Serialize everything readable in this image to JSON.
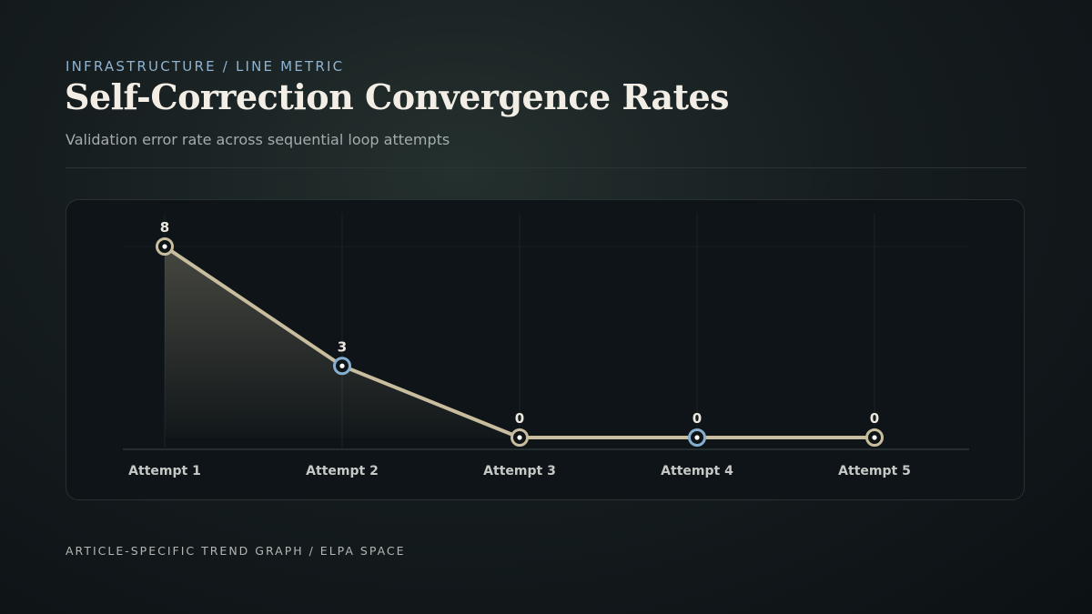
{
  "header": {
    "eyebrow": "INFRASTRUCTURE / LINE METRIC",
    "title": "Self-Correction Convergence Rates",
    "subtitle": "Validation error rate across sequential loop attempts"
  },
  "footer": {
    "text": "ARTICLE-SPECIFIC TREND GRAPH / ELPA SPACE"
  },
  "colors": {
    "line": "#c9bd9f",
    "accent_marker": "#86aed0",
    "marker_fill": "#0f1416"
  },
  "chart_data": {
    "type": "line",
    "title": "Self-Correction Convergence Rates",
    "subtitle": "Validation error rate across sequential loop attempts",
    "categories": [
      "Attempt 1",
      "Attempt 2",
      "Attempt 3",
      "Attempt 4",
      "Attempt 5"
    ],
    "values": [
      8,
      3,
      0,
      0,
      0
    ],
    "data_labels": [
      "8",
      "3",
      "0",
      "0",
      "0"
    ],
    "highlighted_points": [
      "Attempt 2",
      "Attempt 4"
    ],
    "ylim": [
      0,
      8
    ],
    "xlabel": "",
    "ylabel": "",
    "grid": true,
    "legend": "none"
  }
}
